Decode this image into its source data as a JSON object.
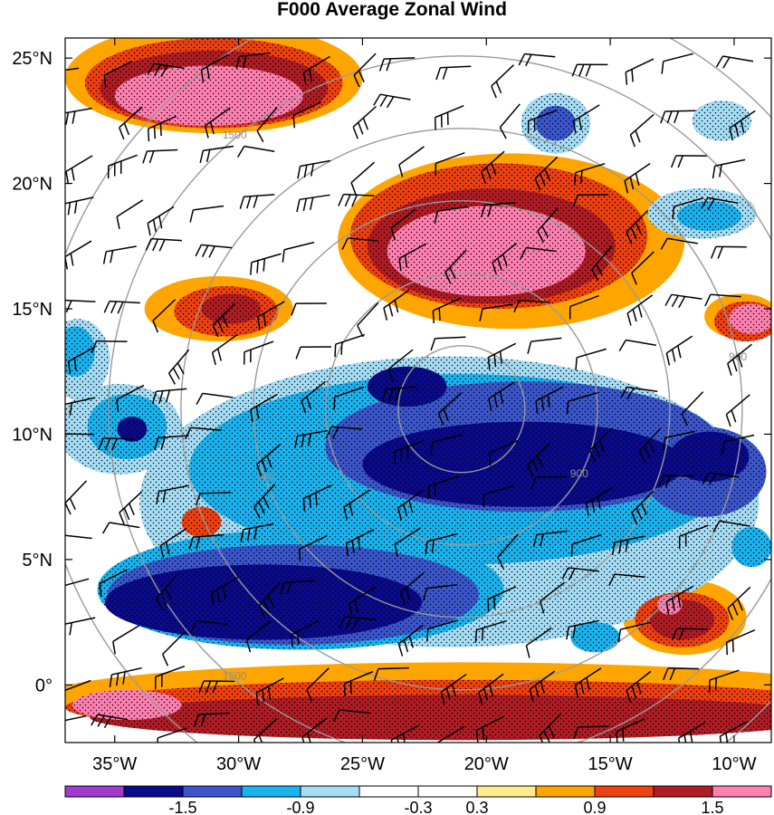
{
  "chart_data": {
    "type": "heatmap",
    "title": "F000 Average Zonal Wind",
    "x_axis": {
      "range": [
        -37,
        -8.5
      ],
      "ticks": [
        -35,
        -30,
        -25,
        -20,
        -15,
        -10
      ],
      "tick_labels": [
        "35°W",
        "30°W",
        "25°W",
        "20°W",
        "15°W",
        "10°W"
      ]
    },
    "y_axis": {
      "range": [
        -2.3,
        25.8
      ],
      "ticks": [
        0,
        5,
        10,
        15,
        20,
        25
      ],
      "tick_labels": [
        "0°",
        "5°N",
        "10°N",
        "15°N",
        "20°N",
        "25°N"
      ]
    },
    "colorbar": {
      "levels": [
        -1.8,
        -1.5,
        -1.2,
        -0.9,
        -0.6,
        -0.3,
        0.3,
        0.6,
        0.9,
        1.2,
        1.5
      ],
      "labels": [
        "-1.5",
        "-0.9",
        "-0.3",
        "0.3",
        "0.9",
        "1.5"
      ],
      "label_values": [
        -1.5,
        -0.9,
        -0.3,
        0.3,
        0.9,
        1.5
      ],
      "colors": [
        "#a03ad0",
        "#0a0a8c",
        "#3b56cc",
        "#19b4f0",
        "#a6ddf6",
        "#ffffff",
        "#ffffff",
        "#feeb8e",
        "#ffa500",
        "#f04010",
        "#b01c24",
        "#ff80b0"
      ],
      "orientation": "horizontal",
      "position": "bottom"
    },
    "range_rings": {
      "center": [
        -21,
        11
      ],
      "radius_labels": [
        "900",
        "1500"
      ]
    },
    "features": [
      {
        "value": -1.8,
        "lon": -29.0,
        "lat": 3.3,
        "rx": 6.4,
        "ry": 1.5
      },
      {
        "value": -1.8,
        "lon": -18.5,
        "lat": 8.8,
        "rx": 6.5,
        "ry": 1.7
      },
      {
        "value": -1.8,
        "lon": -23.2,
        "lat": 11.9,
        "rx": 1.6,
        "ry": 0.8
      },
      {
        "value": -1.8,
        "lon": -11.0,
        "lat": 9.1,
        "rx": 1.6,
        "ry": 1.0
      },
      {
        "value": -1.8,
        "lon": -34.3,
        "lat": 10.2,
        "rx": 0.6,
        "ry": 0.5
      },
      {
        "value": -1.5,
        "lon": -18.5,
        "lat": 9.5,
        "rx": 8.0,
        "ry": 2.6
      },
      {
        "value": -1.5,
        "lon": -27.8,
        "lat": 3.6,
        "rx": 7.5,
        "ry": 2.0
      },
      {
        "value": -1.5,
        "lon": -17.2,
        "lat": 22.4,
        "rx": 0.8,
        "ry": 0.7
      },
      {
        "value": -1.5,
        "lon": -11.2,
        "lat": 8.5,
        "rx": 2.5,
        "ry": 1.8
      },
      {
        "value": -1.2,
        "lon": -21.0,
        "lat": 8.6,
        "rx": 11.0,
        "ry": 3.8
      },
      {
        "value": -1.2,
        "lon": -27.5,
        "lat": 3.8,
        "rx": 8.2,
        "ry": 2.4
      },
      {
        "value": -1.2,
        "lon": -34.5,
        "lat": 10.3,
        "rx": 1.6,
        "ry": 1.3
      },
      {
        "value": -1.2,
        "lon": -36.6,
        "lat": 13.3,
        "rx": 0.8,
        "ry": 1.0
      },
      {
        "value": -1.2,
        "lon": -11.0,
        "lat": 18.7,
        "rx": 1.3,
        "ry": 0.6
      },
      {
        "value": -1.2,
        "lon": -15.6,
        "lat": 1.9,
        "rx": 1.0,
        "ry": 0.6
      },
      {
        "value": -1.2,
        "lon": -9.3,
        "lat": 5.5,
        "rx": 0.8,
        "ry": 0.8
      },
      {
        "value": -0.9,
        "lon": -21.5,
        "lat": 7.3,
        "rx": 12.5,
        "ry": 5.8
      },
      {
        "value": -0.9,
        "lon": -34.8,
        "lat": 10.2,
        "rx": 2.5,
        "ry": 1.8
      },
      {
        "value": -0.9,
        "lon": -17.2,
        "lat": 22.4,
        "rx": 1.4,
        "ry": 1.2
      },
      {
        "value": -0.9,
        "lon": -10.5,
        "lat": 22.5,
        "rx": 1.2,
        "ry": 0.8
      },
      {
        "value": -0.9,
        "lon": -11.3,
        "lat": 18.8,
        "rx": 2.2,
        "ry": 1.0
      },
      {
        "value": -0.9,
        "lon": -36.5,
        "lat": 13.0,
        "rx": 1.3,
        "ry": 1.6
      },
      {
        "value": -0.3,
        "lon": -21.5,
        "lat": 7.3,
        "rx": 13.8,
        "ry": 6.6
      },
      {
        "value": -0.3,
        "lon": -35.5,
        "lat": 24.7,
        "rx": 1.8,
        "ry": 1.0
      },
      {
        "value": -0.3,
        "lon": -17.2,
        "lat": 22.4,
        "rx": 2.0,
        "ry": 1.6
      },
      {
        "value": -0.3,
        "lon": -10.5,
        "lat": 22.4,
        "rx": 1.6,
        "ry": 1.0
      },
      {
        "value": -0.3,
        "lon": -11.3,
        "lat": 18.8,
        "rx": 2.8,
        "ry": 1.3
      },
      {
        "value": -0.3,
        "lon": -35.0,
        "lat": 10.5,
        "rx": 3.2,
        "ry": 2.6
      },
      {
        "value": 0.6,
        "lon": -31.0,
        "lat": 24.2,
        "rx": 6.0,
        "ry": 2.2
      },
      {
        "value": 0.6,
        "lon": -19.0,
        "lat": 17.7,
        "rx": 7.0,
        "ry": 3.5
      },
      {
        "value": 0.6,
        "lon": -30.8,
        "lat": 15.0,
        "rx": 3.0,
        "ry": 1.3
      },
      {
        "value": 0.6,
        "lon": -21.0,
        "lat": -0.5,
        "rx": 17.0,
        "ry": 1.4
      },
      {
        "value": 0.6,
        "lon": -12.0,
        "lat": 2.7,
        "rx": 2.5,
        "ry": 1.5
      },
      {
        "value": 0.6,
        "lon": -31.5,
        "lat": 6.6,
        "rx": 1.5,
        "ry": 0.9
      },
      {
        "value": 0.6,
        "lon": -9.7,
        "lat": 14.7,
        "rx": 1.5,
        "ry": 0.9
      },
      {
        "value": 0.9,
        "lon": -31.0,
        "lat": 24.0,
        "rx": 5.2,
        "ry": 1.8
      },
      {
        "value": 0.9,
        "lon": -19.5,
        "lat": 17.9,
        "rx": 6.0,
        "ry": 2.9
      },
      {
        "value": 0.9,
        "lon": -30.5,
        "lat": 14.9,
        "rx": 2.1,
        "ry": 1.0
      },
      {
        "value": 0.9,
        "lon": -21.0,
        "lat": -0.9,
        "rx": 16.0,
        "ry": 1.1
      },
      {
        "value": 0.9,
        "lon": -12.1,
        "lat": 2.6,
        "rx": 1.9,
        "ry": 1.1
      },
      {
        "value": 0.9,
        "lon": -31.5,
        "lat": 6.5,
        "rx": 0.8,
        "ry": 0.6
      },
      {
        "value": 0.9,
        "lon": -9.5,
        "lat": 14.5,
        "rx": 1.3,
        "ry": 0.8
      },
      {
        "value": 1.2,
        "lon": -31.0,
        "lat": 23.8,
        "rx": 4.6,
        "ry": 1.5
      },
      {
        "value": 1.2,
        "lon": -19.8,
        "lat": 17.5,
        "rx": 5.0,
        "ry": 2.3
      },
      {
        "value": 1.2,
        "lon": -30.3,
        "lat": 15.0,
        "rx": 1.2,
        "ry": 0.6
      },
      {
        "value": 1.2,
        "lon": -21.0,
        "lat": -1.3,
        "rx": 15.0,
        "ry": 0.9
      },
      {
        "value": 1.2,
        "lon": -12.1,
        "lat": 2.6,
        "rx": 1.3,
        "ry": 0.8
      },
      {
        "value": 1.5,
        "lon": -31.2,
        "lat": 23.5,
        "rx": 3.8,
        "ry": 1.2
      },
      {
        "value": 1.5,
        "lon": -20.0,
        "lat": 17.3,
        "rx": 4.0,
        "ry": 1.8
      },
      {
        "value": 1.5,
        "lon": -34.5,
        "lat": -0.8,
        "rx": 2.2,
        "ry": 0.6
      },
      {
        "value": 1.5,
        "lon": -9.3,
        "lat": 14.6,
        "rx": 0.9,
        "ry": 0.6
      },
      {
        "value": 1.5,
        "lon": -12.6,
        "lat": 3.2,
        "rx": 0.5,
        "ry": 0.4
      }
    ]
  }
}
